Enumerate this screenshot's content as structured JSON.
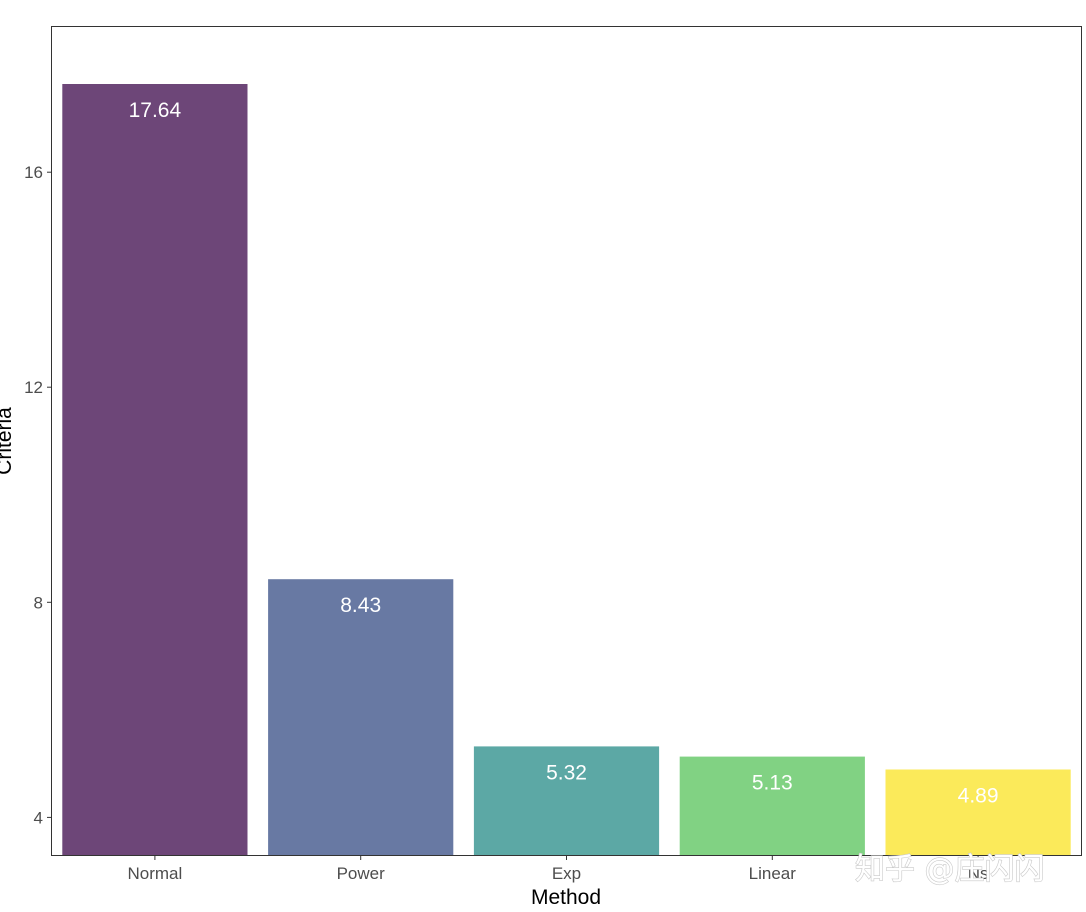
{
  "chart_data": {
    "type": "bar",
    "categories": [
      "Normal",
      "Power",
      "Exp",
      "Linear",
      "Ns"
    ],
    "values": [
      17.64,
      8.43,
      5.32,
      5.13,
      4.89
    ],
    "value_labels": [
      "17.64",
      "8.43",
      "5.32",
      "5.13",
      "4.89"
    ],
    "colors": [
      "#6d4678",
      "#6879a3",
      "#5ca8a5",
      "#81d283",
      "#fbea5a"
    ],
    "xlabel": "Method",
    "ylabel": "Criteria",
    "ylim": [
      3.3,
      18.7
    ],
    "yticks": [
      4,
      8,
      12,
      16
    ],
    "grid": false,
    "legend": "none"
  },
  "watermark": {
    "text": "知乎 @庄闪闪"
  }
}
